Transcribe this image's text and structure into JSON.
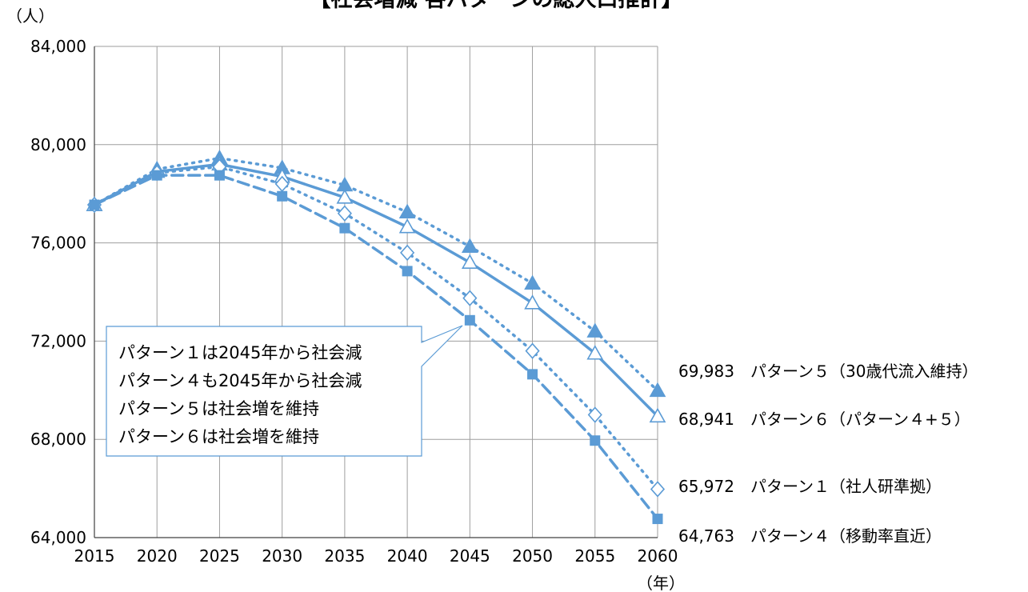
{
  "chart_data": {
    "type": "line",
    "title": "【社会増減 各パターンの総人口推計】",
    "y_unit_label": "（人）",
    "x_unit_label": "（年）",
    "x": [
      2015,
      2020,
      2025,
      2030,
      2035,
      2040,
      2045,
      2050,
      2055,
      2060
    ],
    "y_ticks": [
      "84,000",
      "80,000",
      "76,000",
      "72,000",
      "68,000",
      "64,000"
    ],
    "ylim": [
      64000,
      84000
    ],
    "grid": true,
    "series": [
      {
        "key": "p5",
        "name": "パターン５（30歳代流入維持）",
        "end_label": "69,983",
        "style": "dotted",
        "marker": "triangle-filled",
        "values": [
          77550,
          79000,
          79450,
          79050,
          78350,
          77250,
          75850,
          74350,
          72400,
          69983
        ]
      },
      {
        "key": "p6",
        "name": "パターン６（パターン４+５）",
        "end_label": "68,941",
        "style": "solid",
        "marker": "triangle-open",
        "values": [
          77550,
          78900,
          79200,
          78700,
          77850,
          76650,
          75200,
          73550,
          71500,
          68941
        ]
      },
      {
        "key": "p1",
        "name": "パターン１（社人研準拠）",
        "end_label": "65,972",
        "style": "dotted",
        "marker": "diamond-open",
        "values": [
          77550,
          78850,
          79100,
          78400,
          77200,
          75600,
          73750,
          71600,
          69000,
          65972
        ]
      },
      {
        "key": "p4",
        "name": "パターン４（移動率直近）",
        "end_label": "64,763",
        "style": "dashed",
        "marker": "square-filled",
        "values": [
          77550,
          78750,
          78750,
          77900,
          76600,
          74850,
          72850,
          70650,
          67950,
          64763
        ]
      }
    ],
    "callout": [
      "パターン１は2045年から社会減",
      "パターン４も2045年から社会減",
      "パターン５は社会増を維持",
      "パターン６は社会増を維持"
    ]
  },
  "colors": {
    "series": "#5B9BD5",
    "grid": "#9e9e9e",
    "axis": "#404040"
  }
}
